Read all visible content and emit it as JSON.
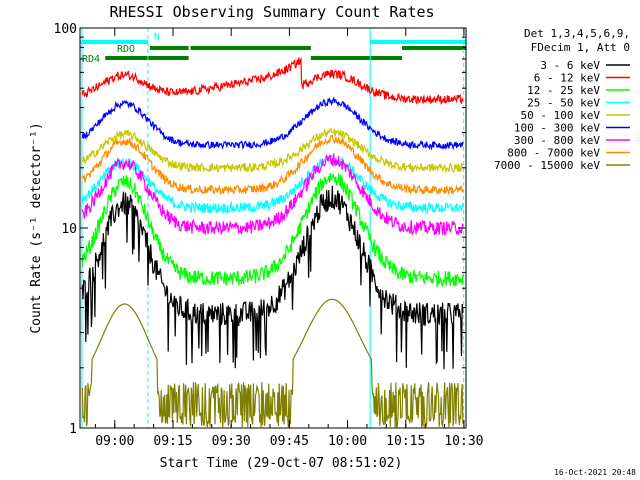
{
  "chart_data": {
    "type": "line",
    "title": "RHESSI Observing Summary Count Rates",
    "xlabel": "Start Time (29-Oct-07 08:51:02)",
    "ylabel": "Count Rate (s⁻¹ detector⁻¹)",
    "yscale": "log",
    "ylim": [
      1,
      100
    ],
    "xlim_minutes": [
      0,
      99.5
    ],
    "x_ticks": [
      {
        "label": "09:00",
        "min": 8.97
      },
      {
        "label": "09:15",
        "min": 23.97
      },
      {
        "label": "09:30",
        "min": 38.97
      },
      {
        "label": "09:45",
        "min": 53.97
      },
      {
        "label": "10:00",
        "min": 68.97
      },
      {
        "label": "10:15",
        "min": 83.97
      },
      {
        "label": "10:30",
        "min": 98.97
      }
    ],
    "y_ticks": [
      {
        "label": "1",
        "value": 1
      },
      {
        "label": "10",
        "value": 10
      },
      {
        "label": "100",
        "value": 100
      }
    ],
    "legend_header": [
      "Det 1,3,4,5,6,9,",
      "FDecim 1, Att 0"
    ],
    "flags": [
      {
        "name": "N",
        "color": "#00ffff",
        "segments": [
          [
            0,
            17.5
          ],
          [
            74.8,
            99.5
          ]
        ]
      },
      {
        "name": "RDO",
        "color": "#008000",
        "segments": [
          [
            18,
            28
          ],
          [
            28.5,
            59.5
          ],
          [
            83,
            99.5
          ]
        ]
      },
      {
        "name": "RD4",
        "color": "#008000",
        "segments": [
          [
            6.5,
            28
          ],
          [
            59.5,
            83
          ]
        ]
      }
    ],
    "vlines_minutes": [
      0.5,
      17.5,
      74.8,
      98.9
    ],
    "series": [
      {
        "name": "3 - 6 keV",
        "color": "#000000",
        "baseline": 3.7,
        "rise": 16,
        "peak": 14.2,
        "jitter": 0.14
      },
      {
        "name": "6 - 12 keV",
        "color": "#ff0000",
        "baseline": 44,
        "rise": 64,
        "peak": 59,
        "jitter": 0.05
      },
      {
        "name": "12 - 25 keV",
        "color": "#00ff00",
        "baseline": 5.6,
        "rise": 20,
        "peak": 18,
        "jitter": 0.09
      },
      {
        "name": "25 - 50 keV",
        "color": "#00ffff",
        "baseline": 12.6,
        "rise": 24,
        "peak": 22,
        "jitter": 0.06
      },
      {
        "name": "50 - 100 keV",
        "color": "#c8c800",
        "baseline": 20,
        "rise": 32,
        "peak": 30,
        "jitter": 0.05
      },
      {
        "name": "100 - 300 keV",
        "color": "#0000ff",
        "baseline": 26,
        "rise": 45,
        "peak": 43,
        "jitter": 0.04
      },
      {
        "name": "300 - 800 keV",
        "color": "#ff00ff",
        "baseline": 10,
        "rise": 20,
        "peak": 22,
        "jitter": 0.08
      },
      {
        "name": "800 - 7000 keV",
        "color": "#ff8c00",
        "baseline": 15.5,
        "rise": 30,
        "peak": 28,
        "jitter": 0.05
      },
      {
        "name": "7000 - 15000 keV",
        "color": "#808000",
        "baseline": 1.5,
        "rise": 3.3,
        "peak": 4.4,
        "jitter": 0.0
      }
    ],
    "stamp": "16-Oct-2021 20:48"
  }
}
